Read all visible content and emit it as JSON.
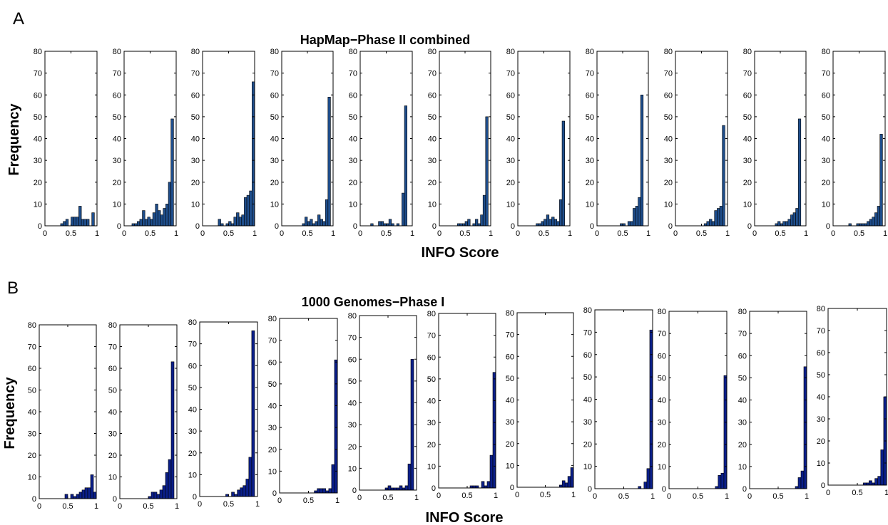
{
  "chart_data": [
    {
      "type": "bar",
      "panel_letter": "A",
      "title": "HapMap−Phase II combined",
      "xlabel": "INFO Score",
      "ylabel": "Frequency",
      "xlim": [
        0,
        1
      ],
      "ylim": [
        0,
        80
      ],
      "xticks": [
        "0",
        "0.5",
        "1"
      ],
      "yticks": [
        "0",
        "10",
        "20",
        "30",
        "40",
        "50",
        "60",
        "70",
        "80"
      ],
      "bar_color": "#1f4e8c",
      "bin_centers": [
        0.025,
        0.075,
        0.125,
        0.175,
        0.225,
        0.275,
        0.325,
        0.375,
        0.425,
        0.475,
        0.525,
        0.575,
        0.625,
        0.675,
        0.725,
        0.775,
        0.825,
        0.875,
        0.925,
        0.975
      ],
      "subplots": [
        {
          "values": [
            0,
            0,
            0,
            0,
            0,
            0,
            1,
            2,
            3,
            0,
            4,
            4,
            4,
            9,
            3,
            3,
            3,
            0,
            6,
            0
          ]
        },
        {
          "values": [
            0,
            0,
            0,
            1,
            1,
            2,
            3,
            7,
            3,
            4,
            3,
            6,
            10,
            7,
            5,
            8,
            10,
            20,
            49,
            0
          ]
        },
        {
          "values": [
            0,
            0,
            0,
            0,
            0,
            0,
            3,
            1,
            0,
            1,
            2,
            1,
            4,
            6,
            4,
            5,
            13,
            14,
            16,
            66
          ]
        },
        {
          "values": [
            0,
            0,
            0,
            0,
            0,
            0,
            0,
            0,
            1,
            4,
            2,
            3,
            1,
            2,
            5,
            3,
            2,
            12,
            59,
            0
          ]
        },
        {
          "values": [
            0,
            0,
            0,
            0,
            1,
            0,
            0,
            2,
            2,
            1,
            1,
            3,
            1,
            0,
            1,
            0,
            15,
            55,
            0,
            0
          ]
        },
        {
          "values": [
            0,
            0,
            0,
            0,
            0,
            0,
            0,
            1,
            1,
            1,
            2,
            3,
            0,
            1,
            3,
            1,
            5,
            14,
            50,
            0
          ]
        },
        {
          "values": [
            0,
            0,
            0,
            0,
            0,
            0,
            0,
            1,
            1,
            2,
            3,
            5,
            3,
            4,
            3,
            2,
            12,
            48,
            0,
            0
          ]
        },
        {
          "values": [
            0,
            0,
            0,
            0,
            0,
            0,
            0,
            0,
            0,
            1,
            1,
            0,
            2,
            2,
            8,
            9,
            13,
            60,
            0,
            0
          ]
        },
        {
          "values": [
            0,
            0,
            0,
            0,
            0,
            0,
            0,
            0,
            0,
            0,
            0,
            1,
            2,
            3,
            2,
            7,
            8,
            9,
            46,
            0
          ]
        },
        {
          "values": [
            0,
            0,
            0,
            0,
            0,
            0,
            0,
            0,
            1,
            2,
            1,
            2,
            2,
            3,
            5,
            6,
            8,
            49,
            0,
            0
          ]
        },
        {
          "values": [
            0,
            0,
            0,
            0,
            0,
            0,
            1,
            0,
            0,
            1,
            1,
            1,
            1,
            2,
            3,
            4,
            6,
            9,
            42,
            0
          ]
        }
      ]
    },
    {
      "type": "bar",
      "panel_letter": "B",
      "title": "1000 Genomes−Phase I",
      "xlabel": "INFO Score",
      "ylabel": "Frequency",
      "xlim": [
        0,
        1
      ],
      "ylim": [
        0,
        80
      ],
      "xticks": [
        "0",
        "0.5",
        "1"
      ],
      "yticks": [
        "0",
        "10",
        "20",
        "30",
        "40",
        "50",
        "60",
        "70",
        "80"
      ],
      "bar_color": "#0b1f8a",
      "bin_centers": [
        0.025,
        0.075,
        0.125,
        0.175,
        0.225,
        0.275,
        0.325,
        0.375,
        0.425,
        0.475,
        0.525,
        0.575,
        0.625,
        0.675,
        0.725,
        0.775,
        0.825,
        0.875,
        0.925,
        0.975
      ],
      "subplots": [
        {
          "values": [
            0,
            0,
            0,
            0,
            0,
            0,
            0,
            0,
            0,
            2,
            0,
            2,
            1,
            2,
            3,
            4,
            5,
            5,
            11,
            3
          ]
        },
        {
          "values": [
            0,
            0,
            0,
            0,
            0,
            0,
            0,
            0,
            0,
            0,
            1,
            3,
            3,
            2,
            4,
            6,
            12,
            18,
            63,
            0
          ]
        },
        {
          "values": [
            0,
            0,
            0,
            0,
            0,
            0,
            0,
            0,
            0,
            1,
            0,
            2,
            1,
            3,
            4,
            5,
            8,
            18,
            76,
            0
          ]
        },
        {
          "values": [
            0,
            0,
            0,
            0,
            0,
            0,
            0,
            0,
            0,
            0,
            0,
            0,
            1,
            2,
            2,
            2,
            1,
            2,
            13,
            61
          ]
        },
        {
          "values": [
            0,
            0,
            0,
            0,
            0,
            0,
            0,
            0,
            0,
            1,
            2,
            1,
            1,
            1,
            2,
            1,
            2,
            12,
            60,
            0
          ]
        },
        {
          "values": [
            0,
            0,
            0,
            0,
            0,
            0,
            0,
            0,
            0,
            0,
            0,
            1,
            1,
            1,
            0,
            3,
            1,
            3,
            15,
            53
          ]
        },
        {
          "values": [
            0,
            0,
            0,
            0,
            0,
            0,
            0,
            0,
            0,
            0,
            0,
            0,
            0,
            0,
            0,
            1,
            3,
            2,
            5,
            9
          ]
        },
        {
          "values": [
            0,
            0,
            0,
            0,
            0,
            0,
            0,
            0,
            0,
            0,
            0,
            0,
            0,
            0,
            0,
            1,
            0,
            3,
            9,
            71
          ]
        },
        {
          "values": [
            0,
            0,
            0,
            0,
            0,
            0,
            0,
            0,
            0,
            0,
            0,
            0,
            0,
            0,
            0,
            0,
            1,
            6,
            7,
            51
          ]
        },
        {
          "values": [
            0,
            0,
            0,
            0,
            0,
            0,
            0,
            0,
            0,
            0,
            0,
            0,
            0,
            0,
            0,
            0,
            1,
            5,
            8,
            55
          ]
        },
        {
          "values": [
            0,
            0,
            0,
            0,
            0,
            0,
            0,
            0,
            0,
            0,
            0,
            0,
            1,
            1,
            2,
            1,
            3,
            4,
            16,
            40
          ]
        }
      ]
    }
  ]
}
